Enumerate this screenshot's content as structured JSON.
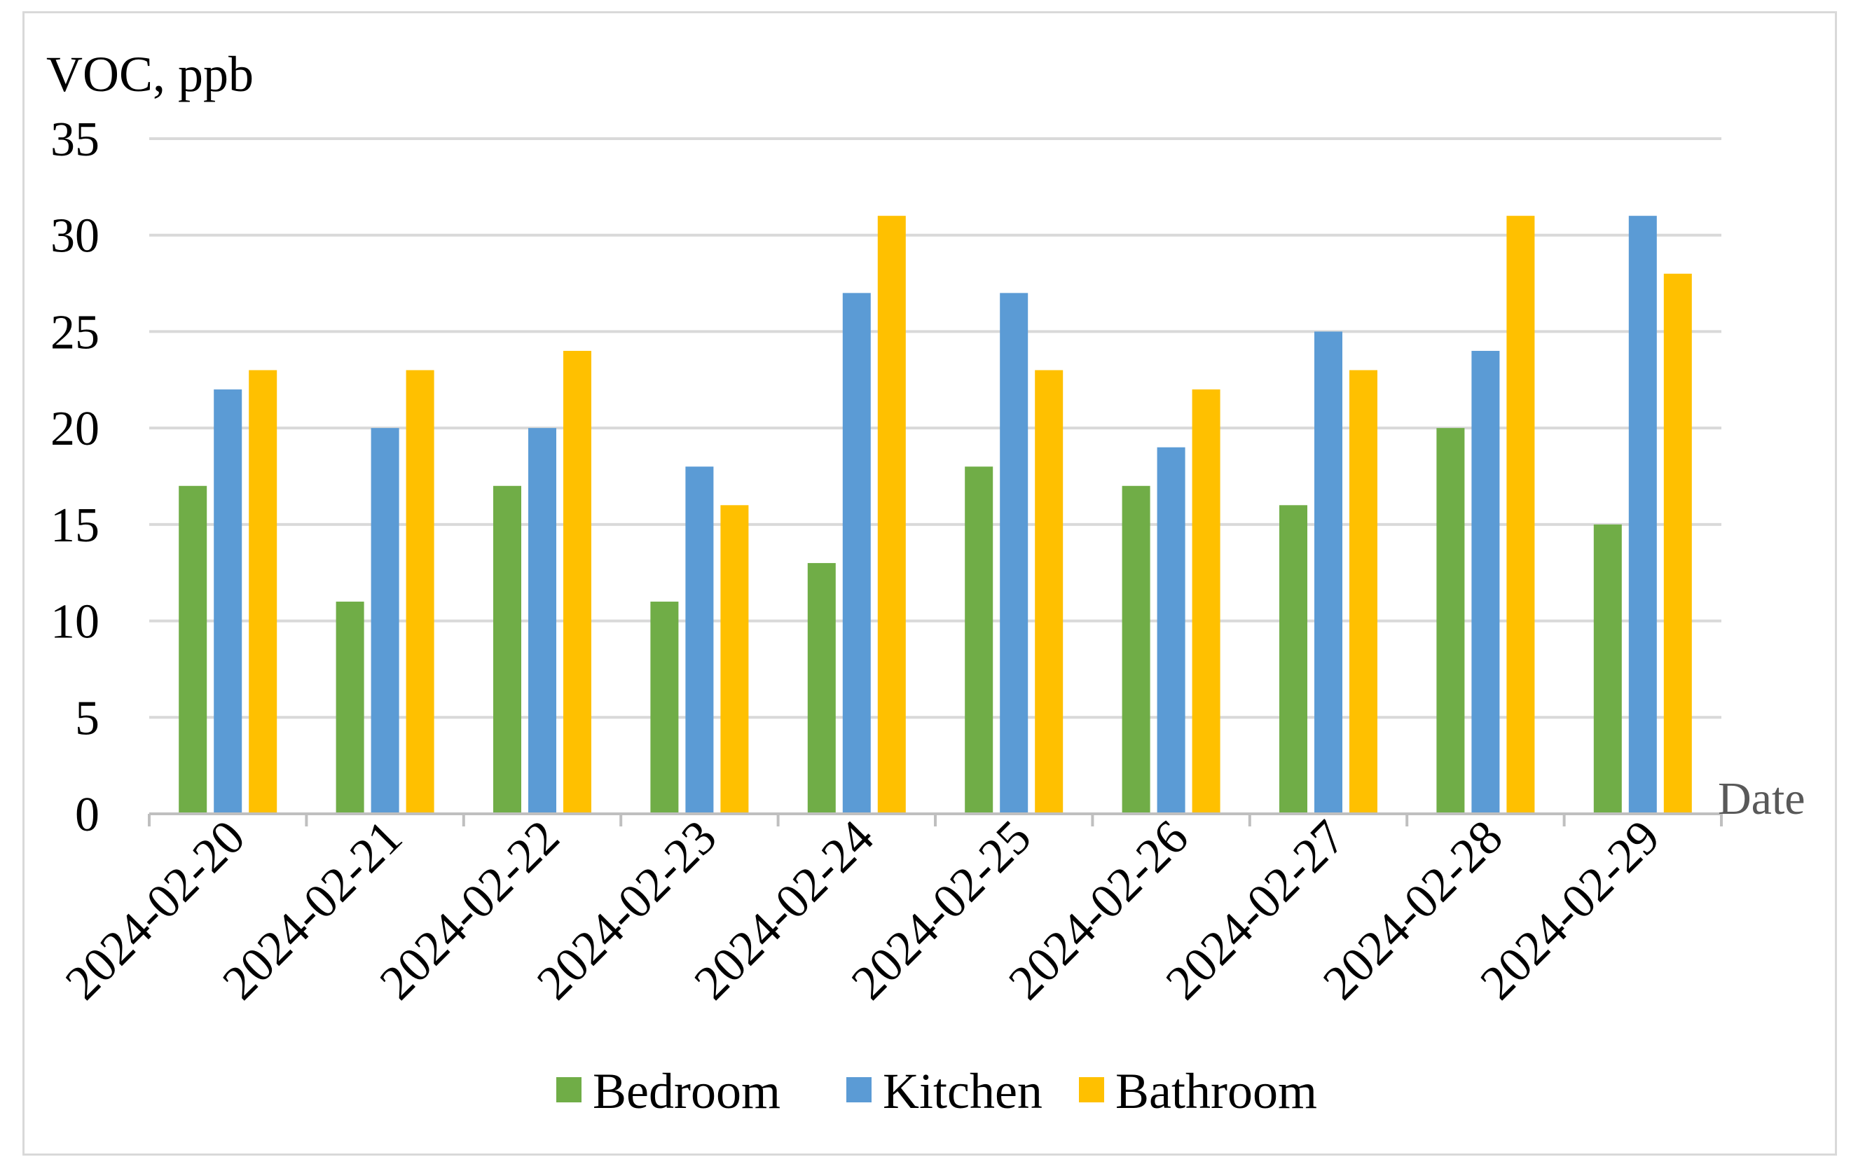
{
  "chart_data": {
    "type": "bar",
    "title": "",
    "ylabel": "VOC, ppb",
    "xlabel": "Date",
    "ylim": [
      0,
      35
    ],
    "yticks": [
      0,
      5,
      10,
      15,
      20,
      25,
      30,
      35
    ],
    "grid": true,
    "legend_position": "bottom",
    "categories": [
      "2024-02-20",
      "2024-02-21",
      "2024-02-22",
      "2024-02-23",
      "2024-02-24",
      "2024-02-25",
      "2024-02-26",
      "2024-02-27",
      "2024-02-28",
      "2024-02-29"
    ],
    "series": [
      {
        "name": "Bedroom",
        "color": "#70ad47",
        "values": [
          17,
          11,
          17,
          11,
          13,
          18,
          17,
          16,
          20,
          15
        ]
      },
      {
        "name": "Kitchen",
        "color": "#5b9bd5",
        "values": [
          22,
          20,
          20,
          18,
          27,
          27,
          19,
          25,
          24,
          31
        ]
      },
      {
        "name": "Bathroom",
        "color": "#ffc000",
        "values": [
          23,
          23,
          24,
          16,
          31,
          23,
          22,
          23,
          31,
          28
        ]
      }
    ]
  }
}
